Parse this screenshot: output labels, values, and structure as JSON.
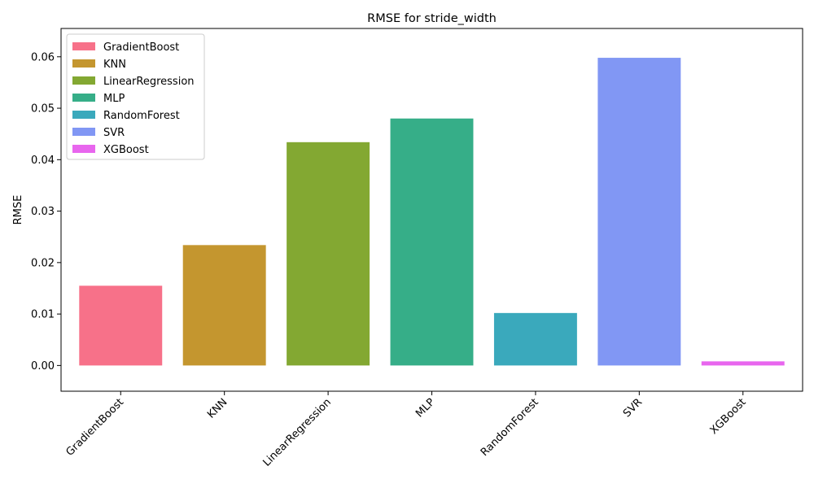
{
  "chart_data": {
    "type": "bar",
    "title": "RMSE for stride_width",
    "xlabel": "",
    "ylabel": "RMSE",
    "categories": [
      "GradientBoost",
      "KNN",
      "LinearRegression",
      "MLP",
      "RandomForest",
      "SVR",
      "XGBoost"
    ],
    "values": [
      0.0155,
      0.0234,
      0.0434,
      0.048,
      0.0102,
      0.0598,
      0.0008
    ],
    "colors": [
      "#f77189",
      "#c4962f",
      "#83a832",
      "#36ae88",
      "#3aa9bc",
      "#8197f4",
      "#e866ee"
    ],
    "ylim": [
      -0.005,
      0.0655
    ],
    "yticks": [
      0.0,
      0.01,
      0.02,
      0.03,
      0.04,
      0.05,
      0.06
    ],
    "ytick_labels": [
      "0.00",
      "0.01",
      "0.02",
      "0.03",
      "0.04",
      "0.05",
      "0.06"
    ],
    "legend": {
      "placement": "top-left",
      "entries": [
        "GradientBoost",
        "KNN",
        "LinearRegression",
        "MLP",
        "RandomForest",
        "SVR",
        "XGBoost"
      ]
    },
    "grid": false
  }
}
